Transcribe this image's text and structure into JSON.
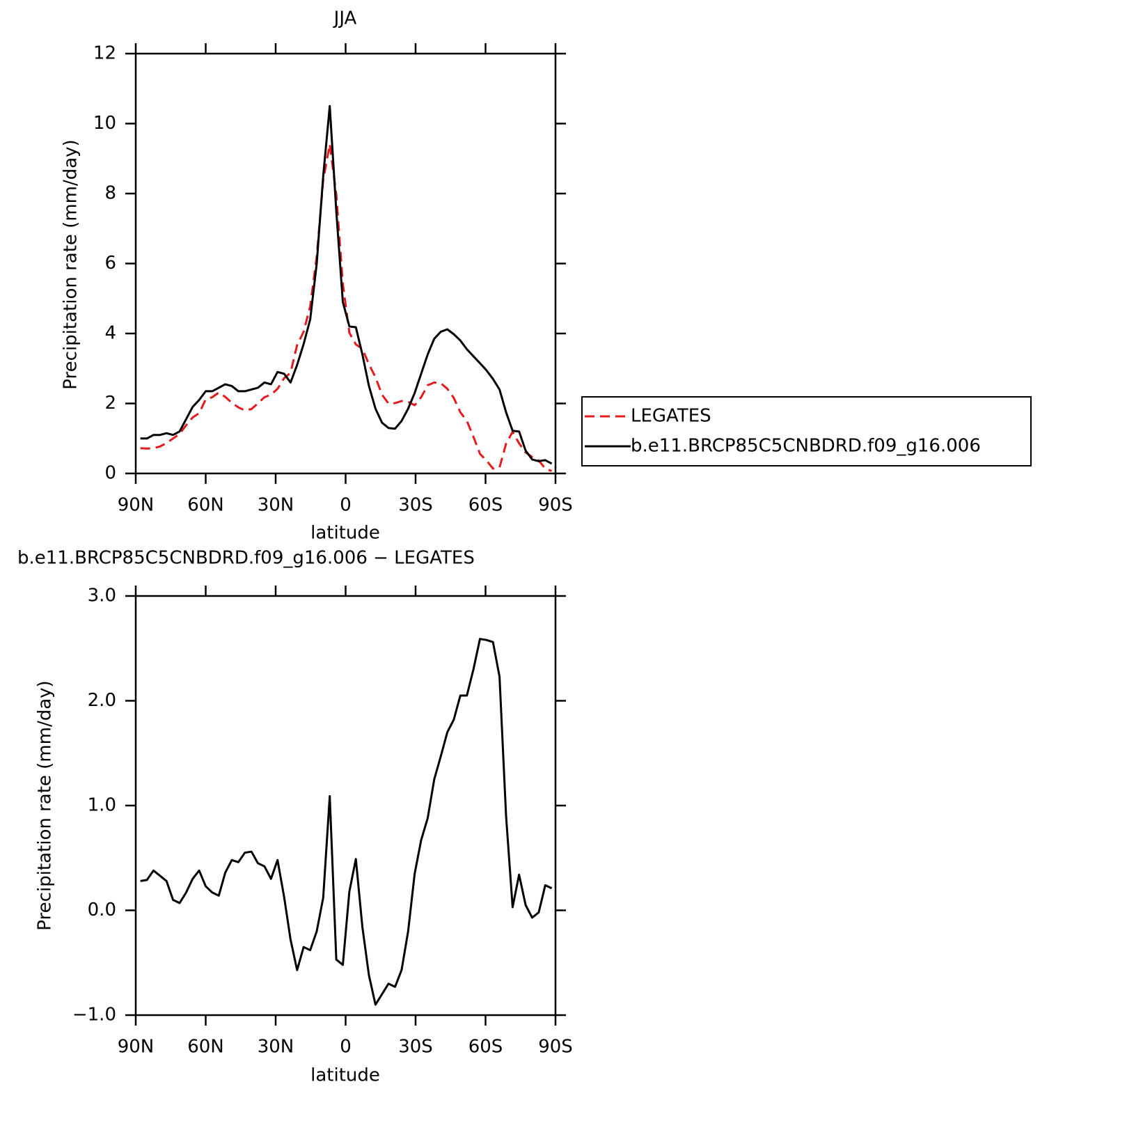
{
  "chart_data": [
    {
      "type": "line",
      "title": "JJA",
      "xlabel": "latitude",
      "ylabel": "Precipitation rate (mm/day)",
      "x": [
        88,
        85.2,
        82.4,
        79.6,
        76.8,
        74,
        71.2,
        68.4,
        65.6,
        62.8,
        60,
        57.2,
        54.4,
        51.6,
        48.8,
        46,
        43.2,
        40.4,
        37.6,
        34.8,
        32,
        29.2,
        26.4,
        23.6,
        20.8,
        18,
        15.2,
        12.4,
        9.6,
        6.8,
        4,
        1.2,
        -1.6,
        -4.4,
        -7.2,
        -10,
        -12.8,
        -15.6,
        -18.4,
        -21.2,
        -24,
        -26.8,
        -29.6,
        -32.4,
        -35.2,
        -38,
        -40.8,
        -43.6,
        -46.4,
        -49.2,
        -52,
        -54.8,
        -57.6,
        -60.4,
        -63.2,
        -66,
        -68.8,
        -71.6,
        -74.4,
        -77.2,
        -80,
        -82.8,
        -85.6,
        -88.4
      ],
      "series": [
        {
          "name": "LEGATES",
          "color": "#e41a1c",
          "dashed": true,
          "values": [
            0.72,
            0.71,
            0.72,
            0.77,
            0.87,
            1.0,
            1.13,
            1.38,
            1.6,
            1.72,
            2.12,
            2.18,
            2.31,
            2.19,
            2.02,
            1.89,
            1.8,
            1.84,
            2.0,
            2.18,
            2.25,
            2.42,
            2.72,
            2.88,
            3.67,
            4.05,
            4.78,
            6.2,
            8.38,
            9.41,
            7.97,
            5.42,
            4.02,
            3.69,
            3.56,
            3.12,
            2.75,
            2.25,
            2.0,
            2.01,
            2.07,
            2.05,
            1.95,
            2.18,
            2.52,
            2.6,
            2.58,
            2.42,
            2.16,
            1.75,
            1.5,
            1.05,
            0.56,
            0.37,
            0.14,
            0.17,
            0.85,
            1.19,
            0.86,
            0.6,
            0.47,
            0.37,
            0.14,
            0.07
          ]
        },
        {
          "name": "b.e11.BRCP85C5CNBDRD.f09_g16.006",
          "color": "#000000",
          "dashed": false,
          "values": [
            1.0,
            1.0,
            1.1,
            1.1,
            1.15,
            1.1,
            1.2,
            1.55,
            1.9,
            2.1,
            2.35,
            2.35,
            2.45,
            2.55,
            2.5,
            2.35,
            2.35,
            2.4,
            2.45,
            2.6,
            2.55,
            2.9,
            2.85,
            2.6,
            3.1,
            3.7,
            4.4,
            6.0,
            8.5,
            10.5,
            7.5,
            4.9,
            4.2,
            4.18,
            3.4,
            2.5,
            1.85,
            1.45,
            1.3,
            1.28,
            1.5,
            1.85,
            2.3,
            2.85,
            3.4,
            3.85,
            4.05,
            4.12,
            3.98,
            3.8,
            3.55,
            3.35,
            3.15,
            2.95,
            2.7,
            2.4,
            1.75,
            1.22,
            1.2,
            0.65,
            0.4,
            0.35,
            0.38,
            0.28
          ]
        }
      ],
      "xlim": [
        90,
        -90
      ],
      "xticks": [
        {
          "value": 90,
          "label": "90N"
        },
        {
          "value": 60,
          "label": "60N"
        },
        {
          "value": 30,
          "label": "30N"
        },
        0,
        {
          "value": -30,
          "label": "30S"
        },
        {
          "value": -60,
          "label": "60S"
        },
        {
          "value": -90,
          "label": "90S"
        }
      ],
      "ylim": [
        0,
        12
      ],
      "yticks": [
        0,
        2,
        4,
        6,
        8,
        10,
        12
      ],
      "legend": "right",
      "grid": false
    },
    {
      "type": "line",
      "title": "b.e11.BRCP85C5CNBDRD.f09_g16.006 − LEGATES",
      "xlabel": "latitude",
      "ylabel": "Precipitation rate (mm/day)",
      "x": [
        88,
        85.2,
        82.4,
        79.6,
        76.8,
        74,
        71.2,
        68.4,
        65.6,
        62.8,
        60,
        57.2,
        54.4,
        51.6,
        48.8,
        46,
        43.2,
        40.4,
        37.6,
        34.8,
        32,
        29.2,
        26.4,
        23.6,
        20.8,
        18,
        15.2,
        12.4,
        9.6,
        6.8,
        4,
        1.2,
        -1.6,
        -4.4,
        -7.2,
        -10,
        -12.8,
        -15.6,
        -18.4,
        -21.2,
        -24,
        -26.8,
        -29.6,
        -32.4,
        -35.2,
        -38,
        -40.8,
        -43.6,
        -46.4,
        -49.2,
        -52,
        -54.8,
        -57.6,
        -60.4,
        -63.2,
        -66,
        -68.8,
        -71.6,
        -74.4,
        -77.2,
        -80,
        -82.8,
        -85.6,
        -88.4
      ],
      "values": [
        0.28,
        0.29,
        0.38,
        0.33,
        0.28,
        0.1,
        0.07,
        0.17,
        0.3,
        0.38,
        0.23,
        0.17,
        0.14,
        0.36,
        0.48,
        0.46,
        0.55,
        0.56,
        0.45,
        0.42,
        0.3,
        0.48,
        0.13,
        -0.28,
        -0.57,
        -0.35,
        -0.38,
        -0.2,
        0.12,
        1.09,
        -0.47,
        -0.52,
        0.18,
        0.49,
        -0.16,
        -0.62,
        -0.9,
        -0.8,
        -0.7,
        -0.73,
        -0.57,
        -0.2,
        0.35,
        0.67,
        0.88,
        1.25,
        1.47,
        1.7,
        1.82,
        2.05,
        2.05,
        2.3,
        2.59,
        2.58,
        2.56,
        2.23,
        0.9,
        0.03,
        0.34,
        0.05,
        -0.07,
        -0.02,
        0.24,
        0.21
      ],
      "color": "#000000",
      "xlim": [
        90,
        -90
      ],
      "xticks": [
        {
          "value": 90,
          "label": "90N"
        },
        {
          "value": 60,
          "label": "60N"
        },
        {
          "value": 30,
          "label": "30N"
        },
        0,
        {
          "value": -30,
          "label": "30S"
        },
        {
          "value": -60,
          "label": "60S"
        },
        {
          "value": -90,
          "label": "90S"
        }
      ],
      "ylim": [
        -1,
        3
      ],
      "yticks": [
        {
          "value": -1,
          "label": "−1.0"
        },
        {
          "value": 0,
          "label": "0.0"
        },
        {
          "value": 1,
          "label": "1.0"
        },
        {
          "value": 2,
          "label": "2.0"
        },
        {
          "value": 3,
          "label": "3.0"
        }
      ],
      "grid": false
    }
  ]
}
